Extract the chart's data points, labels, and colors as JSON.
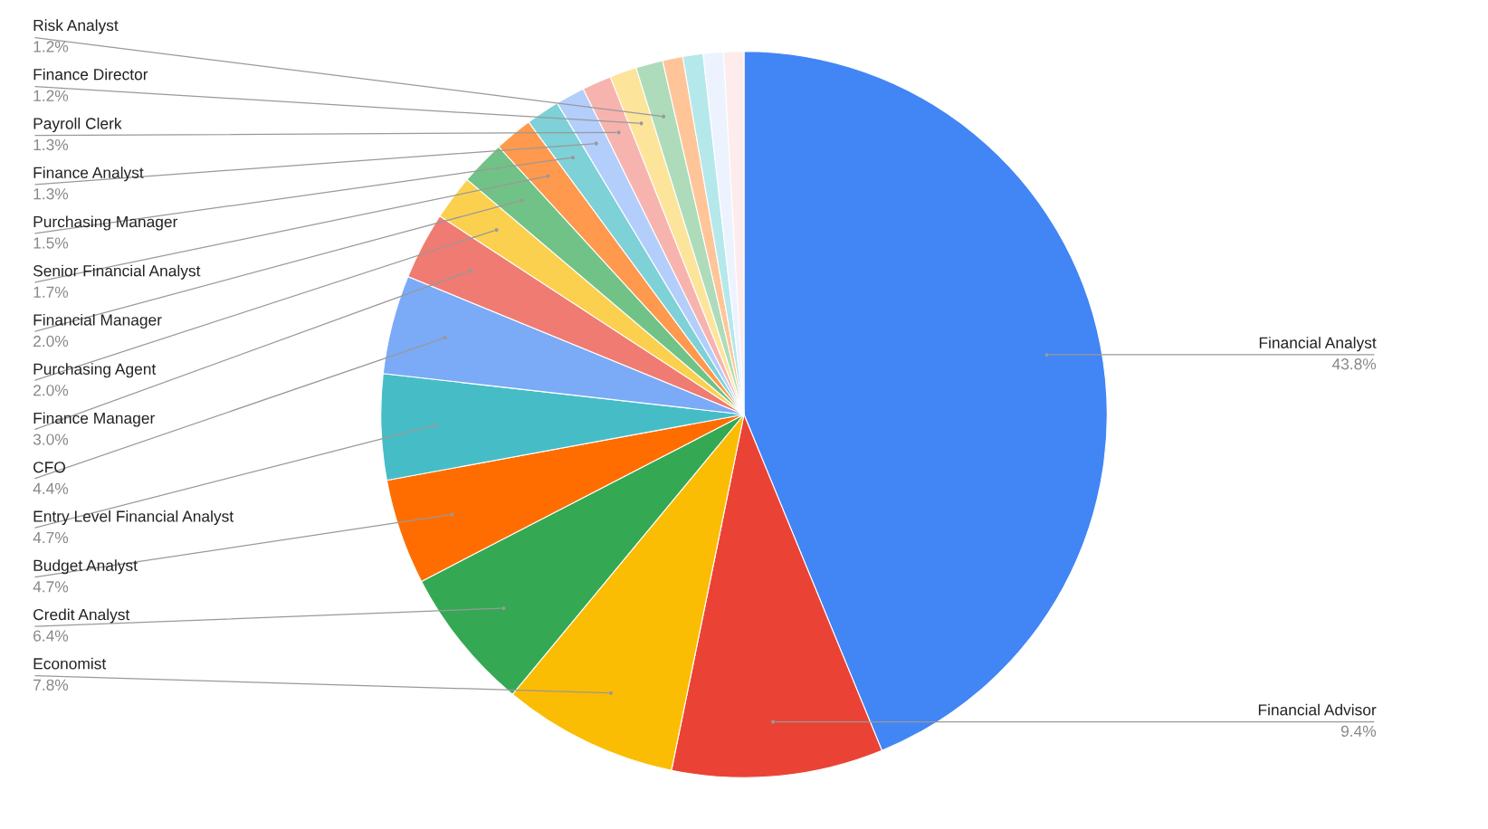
{
  "chart_data": {
    "type": "pie",
    "categories": [
      "Financial Analyst",
      "Financial Advisor",
      "Economist",
      "Credit Analyst",
      "Budget Analyst",
      "Entry Level Financial Analyst",
      "CFO",
      "Finance Manager",
      "Purchasing Agent",
      "Financial Manager",
      "Senior Financial Analyst",
      "Purchasing Manager",
      "Finance Analyst",
      "Payroll Clerk",
      "Finance Director",
      "Risk Analyst",
      null,
      null,
      null,
      null
    ],
    "values": [
      43.8,
      9.4,
      7.8,
      6.4,
      4.7,
      4.7,
      4.4,
      3.0,
      2.0,
      2.0,
      1.7,
      1.5,
      1.3,
      1.3,
      1.2,
      1.2,
      0.9,
      0.9,
      0.9,
      0.9
    ],
    "value_labels": [
      "43.8%",
      "9.4%",
      "7.8%",
      "6.4%",
      "4.7%",
      "4.7%",
      "4.4%",
      "3.0%",
      "2.0%",
      "2.0%",
      "1.7%",
      "1.5%",
      "1.3%",
      "1.3%",
      "1.2%",
      "1.2%",
      null,
      null,
      null,
      null
    ],
    "colors": [
      "#4285f4",
      "#ea4335",
      "#fbbc04",
      "#34a853",
      "#ff6d01",
      "#46bdc6",
      "#7baaf7",
      "#f07b72",
      "#fcd04f",
      "#71c287",
      "#ff994d",
      "#7ed1d7",
      "#b3cefb",
      "#f7b4ae",
      "#fde49b",
      "#aedcba",
      "#ffc599",
      "#b5e8eb",
      "#ecf3fe",
      "#fdeceb"
    ],
    "legend": false
  }
}
